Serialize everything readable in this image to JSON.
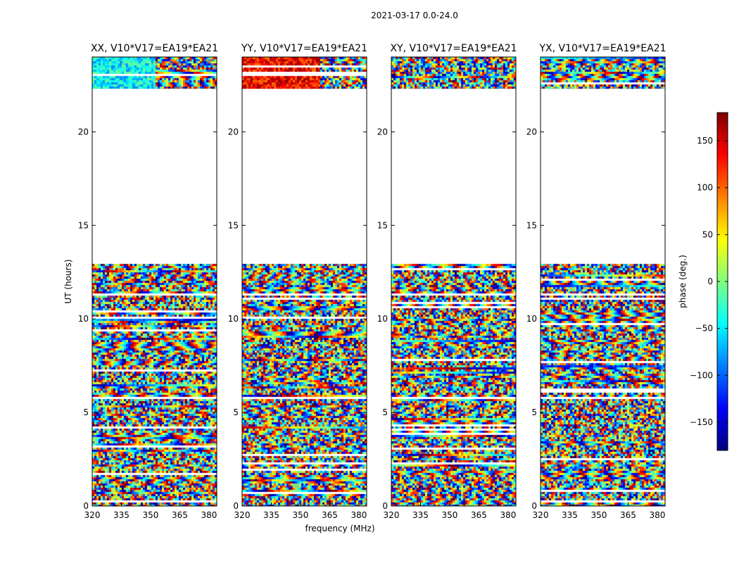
{
  "figure": {
    "suptitle": "2021-03-17 0.0-24.0"
  },
  "chart_data": {
    "type": "heatmap",
    "xlabel": "frequency (MHz)",
    "ylabel": "UT (hours)",
    "xlim": [
      320,
      384
    ],
    "ylim": [
      0,
      24
    ],
    "xticks": [
      320,
      335,
      350,
      365,
      380
    ],
    "yticks": [
      0,
      5,
      10,
      15,
      20
    ],
    "panels": [
      {
        "title": "XX, V10*V17=EA19*EA21",
        "polarization": "XX"
      },
      {
        "title": "YY, V10*V17=EA19*EA21",
        "polarization": "YY"
      },
      {
        "title": "XY, V10*V17=EA19*EA21",
        "polarization": "XY"
      },
      {
        "title": "YX, V10*V17=EA19*EA21",
        "polarization": "YX"
      }
    ],
    "data_ut_ranges": [
      [
        0,
        5.8
      ],
      [
        5.9,
        11.3
      ],
      [
        11.4,
        13.0
      ],
      [
        22.3,
        24.0
      ]
    ],
    "blank_ut_ranges": [
      [
        13.0,
        22.3
      ]
    ],
    "colorbar": {
      "label": "phase (deg.)",
      "range": [
        -180,
        180
      ],
      "ticks": [
        150,
        100,
        50,
        0,
        -50,
        -100,
        -150
      ],
      "tick_labels": [
        "150",
        "100",
        "50",
        "0",
        "−50",
        "−100",
        "−150"
      ],
      "colormap": "jet",
      "colormap_stops": [
        "#00007f",
        "#0000ff",
        "#007fff",
        "#00ffff",
        "#7fff7f",
        "#ffff00",
        "#ff7f00",
        "#ff0000",
        "#7f0000"
      ]
    }
  }
}
